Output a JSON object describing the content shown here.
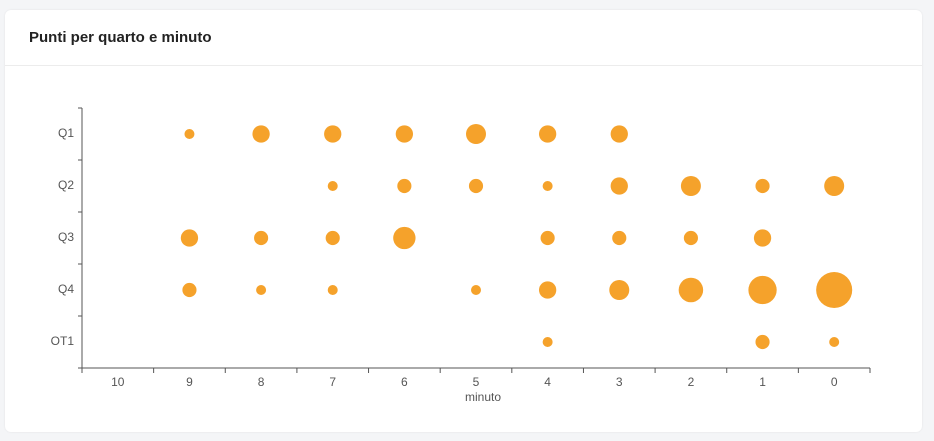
{
  "chart_data": {
    "type": "bubble",
    "title": "Punti per quarto e minuto",
    "x_label": "minuto",
    "x_categories": [
      10,
      9,
      8,
      7,
      6,
      5,
      4,
      3,
      2,
      1,
      0
    ],
    "y_categories": [
      "Q1",
      "Q2",
      "Q3",
      "Q4",
      "OT1"
    ],
    "color": "#f5a22b",
    "values": [
      [
        null,
        1,
        3,
        3,
        3,
        4,
        3,
        3,
        null,
        null,
        null
      ],
      [
        null,
        null,
        null,
        1,
        2,
        2,
        1,
        3,
        4,
        2,
        4
      ],
      [
        null,
        3,
        2,
        2,
        5,
        null,
        2,
        2,
        2,
        3,
        null
      ],
      [
        null,
        2,
        1,
        1,
        null,
        1,
        3,
        4,
        6,
        8,
        13
      ],
      [
        null,
        null,
        null,
        null,
        null,
        null,
        1,
        null,
        null,
        2,
        1
      ]
    ]
  }
}
